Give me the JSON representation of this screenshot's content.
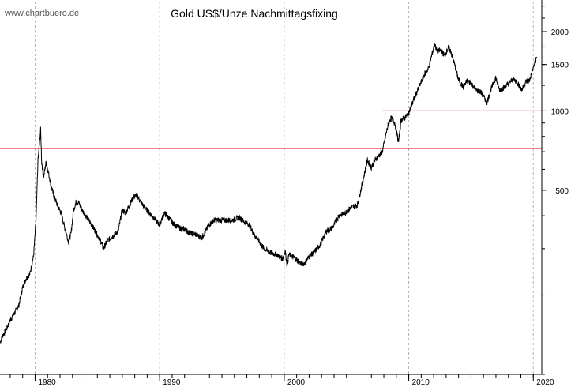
{
  "source_label": "www.chartbuero.de",
  "colors": {
    "price_line": "#000000",
    "resistance_line": "#e00000",
    "grid": "#b4b4b4",
    "axis": "#000000"
  },
  "chart_data": {
    "type": "line",
    "title": "Gold US$/Unze Nachmittagsfixing",
    "xlabel": "",
    "ylabel": "",
    "y_scale": "log",
    "xlim": [
      1976.8,
      2020.3
    ],
    "ylim": [
      100,
      2600
    ],
    "x_ticks": [
      1980,
      1990,
      2000,
      2010,
      2020
    ],
    "x_tick_labels": [
      "1980",
      "1990",
      "2000",
      "2010",
      "2020"
    ],
    "y_ticks": [
      2000,
      1500,
      1000,
      500
    ],
    "y_tick_labels": [
      "2000",
      "1500",
      "1000",
      "500"
    ],
    "grid": "vertical-dashed-at-decades",
    "series": [
      {
        "name": "",
        "x": [
          1976.8,
          1977.0,
          1977.3,
          1977.6,
          1978.0,
          1978.3,
          1978.6,
          1978.9,
          1979.2,
          1979.5,
          1979.7,
          1979.85,
          1980.0,
          1980.06,
          1980.15,
          1980.3,
          1980.5,
          1980.7,
          1980.9,
          1981.1,
          1981.4,
          1981.7,
          1982.0,
          1982.3,
          1982.5,
          1982.7,
          1982.9,
          1983.1,
          1983.4,
          1983.7,
          1984.0,
          1984.3,
          1984.6,
          1984.9,
          1985.1,
          1985.4,
          1985.7,
          1986.0,
          1986.3,
          1986.6,
          1986.9,
          1987.2,
          1987.5,
          1987.8,
          1988.0,
          1988.4,
          1988.8,
          1989.2,
          1989.6,
          1990.0,
          1990.4,
          1990.8,
          1991.2,
          1991.6,
          1992.0,
          1992.5,
          1993.0,
          1993.3,
          1993.6,
          1994.0,
          1994.5,
          1995.0,
          1995.5,
          1996.0,
          1996.4,
          1996.8,
          1997.2,
          1997.6,
          1998.0,
          1998.5,
          1999.0,
          1999.5,
          1999.7,
          1999.85,
          2000.0,
          2000.5,
          2001.0,
          2001.3,
          2001.6,
          2002.0,
          2002.5,
          2003.0,
          2003.5,
          2004.0,
          2004.5,
          2005.0,
          2005.5,
          2006.0,
          2006.3,
          2006.6,
          2007.0,
          2007.5,
          2007.8,
          2008.0,
          2008.2,
          2008.5,
          2008.8,
          2009.0,
          2009.3,
          2009.6,
          2010.0,
          2010.5,
          2010.9,
          2011.2,
          2011.5,
          2011.7,
          2011.9,
          2012.2,
          2012.5,
          2012.8,
          2013.0,
          2013.3,
          2013.6,
          2014.0,
          2014.3,
          2014.6,
          2015.0,
          2015.4,
          2015.9,
          2016.2,
          2016.6,
          2016.9,
          2017.3,
          2017.7,
          2018.0,
          2018.3,
          2018.7,
          2019.0,
          2019.3,
          2019.6,
          2019.9
        ],
        "values": [
          132,
          140,
          148,
          160,
          172,
          182,
          212,
          232,
          240,
          282,
          390,
          650,
          780,
          850,
          640,
          560,
          640,
          580,
          520,
          480,
          440,
          410,
          360,
          320,
          340,
          420,
          450,
          450,
          420,
          400,
          380,
          360,
          340,
          320,
          300,
          320,
          330,
          340,
          350,
          420,
          410,
          440,
          470,
          480,
          460,
          430,
          410,
          390,
          370,
          410,
          390,
          370,
          360,
          355,
          345,
          340,
          330,
          350,
          370,
          385,
          385,
          385,
          385,
          395,
          380,
          370,
          340,
          320,
          300,
          290,
          285,
          275,
          295,
          260,
          285,
          275,
          262,
          265,
          280,
          290,
          310,
          350,
          360,
          400,
          410,
          430,
          440,
          560,
          650,
          610,
          660,
          700,
          820,
          900,
          940,
          900,
          760,
          920,
          940,
          980,
          1100,
          1250,
          1380,
          1450,
          1650,
          1800,
          1680,
          1700,
          1620,
          1740,
          1680,
          1500,
          1320,
          1230,
          1300,
          1280,
          1200,
          1180,
          1080,
          1200,
          1340,
          1200,
          1230,
          1280,
          1320,
          1290,
          1200,
          1290,
          1300,
          1450,
          1600
        ]
      }
    ],
    "reference_lines": [
      {
        "y": 720,
        "x_from": 1976.8,
        "x_to": 2020.3
      },
      {
        "y": 1000,
        "x_from": 2007.5,
        "x_to": 2020.3
      }
    ]
  }
}
